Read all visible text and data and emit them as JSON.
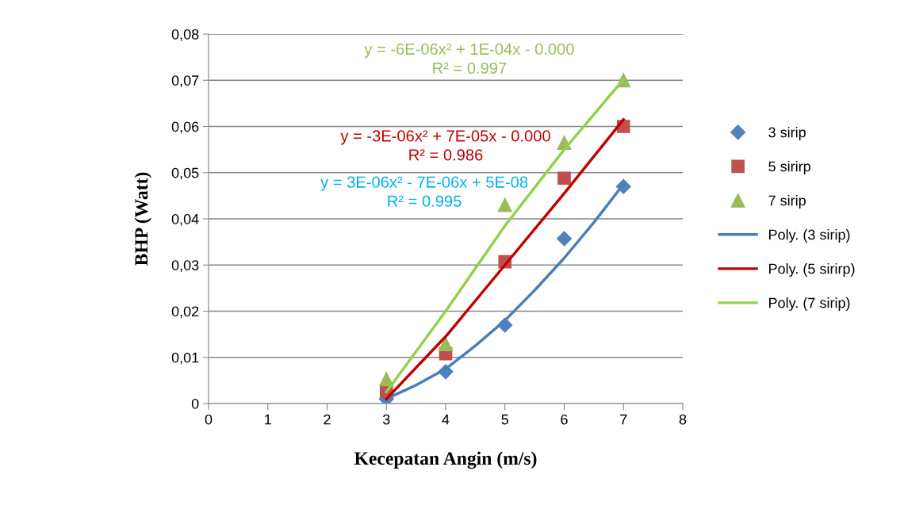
{
  "chart_data": {
    "type": "scatter",
    "xlabel": "Kecepatan Angin (m/s)",
    "ylabel": "BHP (Watt)",
    "xlim": [
      0,
      8
    ],
    "xticks": [
      0,
      1,
      2,
      3,
      4,
      5,
      6,
      7,
      8
    ],
    "ylim": [
      0,
      0.08
    ],
    "yticks": [
      {
        "value": 0,
        "label": "0"
      },
      {
        "value": 0.01,
        "label": "0,01"
      },
      {
        "value": 0.02,
        "label": "0,02"
      },
      {
        "value": 0.03,
        "label": "0,03"
      },
      {
        "value": 0.04,
        "label": "0,04"
      },
      {
        "value": 0.05,
        "label": "0,05"
      },
      {
        "value": 0.06,
        "label": "0,06"
      },
      {
        "value": 0.07,
        "label": "0,07"
      },
      {
        "value": 0.08,
        "label": "0,08"
      }
    ],
    "grid": "y",
    "legend": "right",
    "series": [
      {
        "name": "3 sirip",
        "marker": "diamond",
        "color": "#4f81bd",
        "x": [
          3,
          4,
          5,
          6,
          7
        ],
        "values": [
          0.001,
          0.0069,
          0.017,
          0.0357,
          0.047
        ]
      },
      {
        "name": "5 sirirp",
        "marker": "square",
        "color": "#c0504d",
        "x": [
          3,
          4,
          5,
          6,
          7
        ],
        "values": [
          0.0026,
          0.0108,
          0.0307,
          0.0488,
          0.06
        ]
      },
      {
        "name": "7 sirip",
        "marker": "triangle",
        "color": "#9bbb59",
        "x": [
          3,
          4,
          5,
          6,
          7
        ],
        "values": [
          0.0053,
          0.0129,
          0.043,
          0.0565,
          0.07
        ]
      },
      {
        "name": "Poly. (3 sirip)",
        "type": "line",
        "marker": "none",
        "color": "#4a7ebb",
        "x": [
          3,
          3.5,
          4,
          4.5,
          5,
          5.5,
          6,
          6.5,
          7
        ],
        "values": [
          0.001,
          0.004,
          0.0075,
          0.0125,
          0.018,
          0.0245,
          0.0315,
          0.0392,
          0.0475
        ]
      },
      {
        "name": "Poly. (5 sirirp)",
        "type": "line",
        "marker": "none",
        "color": "#c00000",
        "x": [
          3,
          4,
          5,
          6,
          7
        ],
        "values": [
          0.001,
          0.0145,
          0.03,
          0.0455,
          0.0615
        ]
      },
      {
        "name": "Poly. (7 sirip)",
        "type": "line",
        "marker": "none",
        "color": "#92d050",
        "x": [
          3,
          4,
          5,
          6,
          7
        ],
        "values": [
          0.0025,
          0.02,
          0.0385,
          0.055,
          0.0702
        ]
      }
    ],
    "annotations": [
      "y = -6E-06x² + 1E-04x - 0.000\nR² = 0.997",
      "y = -3E-06x² + 7E-05x - 0.000\nR² = 0.986",
      "y = 3E-06x² - 7E-06x + 5E-08\nR² = 0.995"
    ]
  }
}
